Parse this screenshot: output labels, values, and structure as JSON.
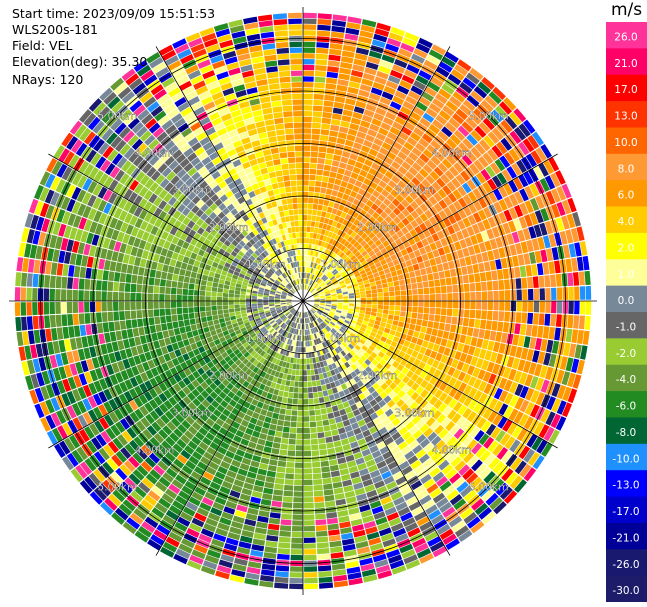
{
  "header": {
    "start_time": "Start time: 2023/09/09 15:51:53",
    "instrument": "WLS200s-181",
    "field": "Field: VEL",
    "elevation": "Elevation(deg): 35.30",
    "nrays": "NRays: 120"
  },
  "colorbar": {
    "unit": "m/s",
    "levels": [
      "26.0",
      "21.0",
      "17.0",
      "13.0",
      "10.0",
      "8.0",
      "6.0",
      "4.0",
      "2.0",
      "1.0",
      "0.0",
      "-1.0",
      "-2.0",
      "-4.0",
      "-6.0",
      "-8.0",
      "-10.0",
      "-13.0",
      "-17.0",
      "-21.0",
      "-26.0",
      "-30.0"
    ],
    "colors": [
      "#ff3399",
      "#ff0066",
      "#ff0000",
      "#ff3300",
      "#ff6600",
      "#ff9933",
      "#ff9900",
      "#ffcc00",
      "#ffff00",
      "#ffff99",
      "#778899",
      "#666666",
      "#99cc33",
      "#669933",
      "#228b22",
      "#006633",
      "#1e90ff",
      "#0000ff",
      "#0000cd",
      "#000099",
      "#191970",
      "#1c1c6b"
    ]
  },
  "chart_data": {
    "type": "heatmap",
    "title": "",
    "projection": "polar (PPI)",
    "field": "VEL",
    "units": "m/s",
    "nrays": 120,
    "elevation_deg": 35.3,
    "ring_ranges_km": [
      1.0,
      2.0,
      3.0,
      4.0,
      5.0
    ],
    "ring_labels": [
      "1.00km",
      "2.00km",
      "3.00km",
      "4.00km",
      "5.00km"
    ],
    "max_range_km": 5.6,
    "color_range": [
      -30.0,
      26.0
    ],
    "pattern": "approximate radial velocity field: positive (yellow/orange) toward north-east, negative (green) toward south-west, near-zero (gray) close to center and along zero-line; noisy far range gates"
  }
}
